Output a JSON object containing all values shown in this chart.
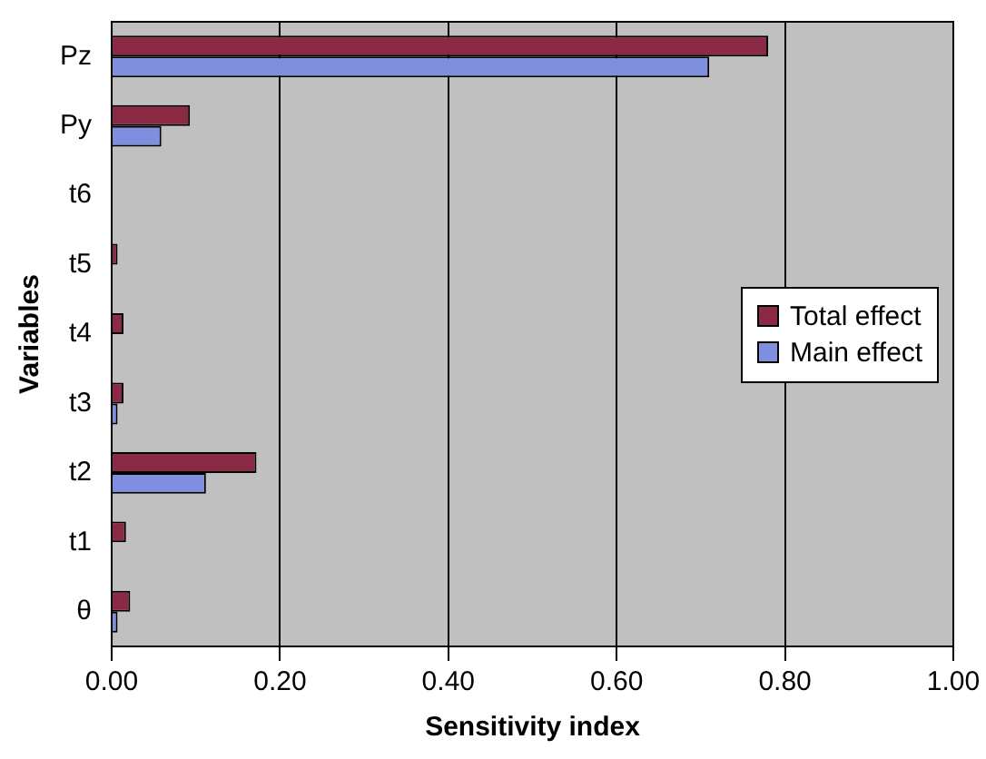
{
  "chart_data": {
    "type": "bar",
    "orientation": "horizontal",
    "xlabel": "Sensitivity index",
    "ylabel": "Variables",
    "categories": [
      "Pz",
      "Py",
      "t6",
      "t5",
      "t4",
      "t3",
      "t2",
      "t1",
      "θ"
    ],
    "series": [
      {
        "name": "Total effect",
        "color": "#8b2a45",
        "values": [
          0.78,
          0.093,
          0,
          0.007,
          0.014,
          0.014,
          0.172,
          0.017,
          0.022
        ]
      },
      {
        "name": "Main effect",
        "color": "#7f8fe0",
        "values": [
          0.71,
          0.059,
          0,
          0,
          0,
          0.007,
          0.112,
          0,
          0.007
        ]
      }
    ],
    "xlim": [
      0,
      1
    ],
    "xticks": [
      {
        "value": 0,
        "label": "0.00"
      },
      {
        "value": 0.2,
        "label": "0.20"
      },
      {
        "value": 0.4,
        "label": "0.40"
      },
      {
        "value": 0.6,
        "label": "0.60"
      },
      {
        "value": 0.8,
        "label": "0.80"
      },
      {
        "value": 1,
        "label": "1.00"
      }
    ],
    "grid": "x",
    "legend": "right"
  }
}
